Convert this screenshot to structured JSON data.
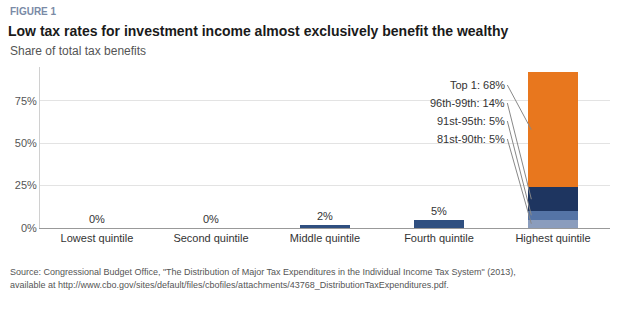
{
  "chart_data": {
    "type": "bar",
    "label": "FIGURE 1",
    "title": "Low tax rates for investment income almost exclusively benefit the wealthy",
    "subtitle": "Share of total tax benefits",
    "source": [
      "Source: Congressional Budget Office, \"The Distribution of Major Tax Expenditures in the Individual Income Tax System\" (2013),",
      "available at http://www.cbo.gov/sites/default/files/cbofiles/attachments/43768_DistributionTaxExpenditures.pdf."
    ],
    "categories": [
      "Lowest quintile",
      "Second quintile",
      "Middle quintile",
      "Fourth quintile",
      "Highest quintile"
    ],
    "series": [
      {
        "color": "#2f4f80",
        "values": [
          0,
          0,
          2,
          5,
          null
        ],
        "value_labels": [
          "0%",
          "0%",
          "2%",
          "5%",
          null
        ]
      },
      {
        "color": "#8b9dbd",
        "values": [
          null,
          null,
          null,
          null,
          5
        ],
        "value_labels": [
          null,
          null,
          null,
          null,
          "81st-90th: 5%"
        ]
      },
      {
        "color": "#5574a6",
        "values": [
          null,
          null,
          null,
          null,
          5
        ],
        "value_labels": [
          null,
          null,
          null,
          null,
          "91st-95th: 5%"
        ]
      },
      {
        "color": "#1e3560",
        "values": [
          null,
          null,
          null,
          null,
          14
        ],
        "value_labels": [
          null,
          null,
          null,
          null,
          "96th-99th: 14%"
        ]
      },
      {
        "color": "#e8771e",
        "values": [
          null,
          null,
          null,
          null,
          68
        ],
        "value_labels": [
          null,
          null,
          null,
          null,
          "Top 1: 68%"
        ]
      }
    ],
    "stacked": true,
    "data_labels": true,
    "grid": true,
    "ylim": [
      0,
      95
    ],
    "yticks": [
      {
        "value": 0,
        "label": "0%"
      },
      {
        "value": 25,
        "label": "25%"
      },
      {
        "value": 50,
        "label": "50%"
      },
      {
        "value": 75,
        "label": "75%"
      }
    ]
  }
}
